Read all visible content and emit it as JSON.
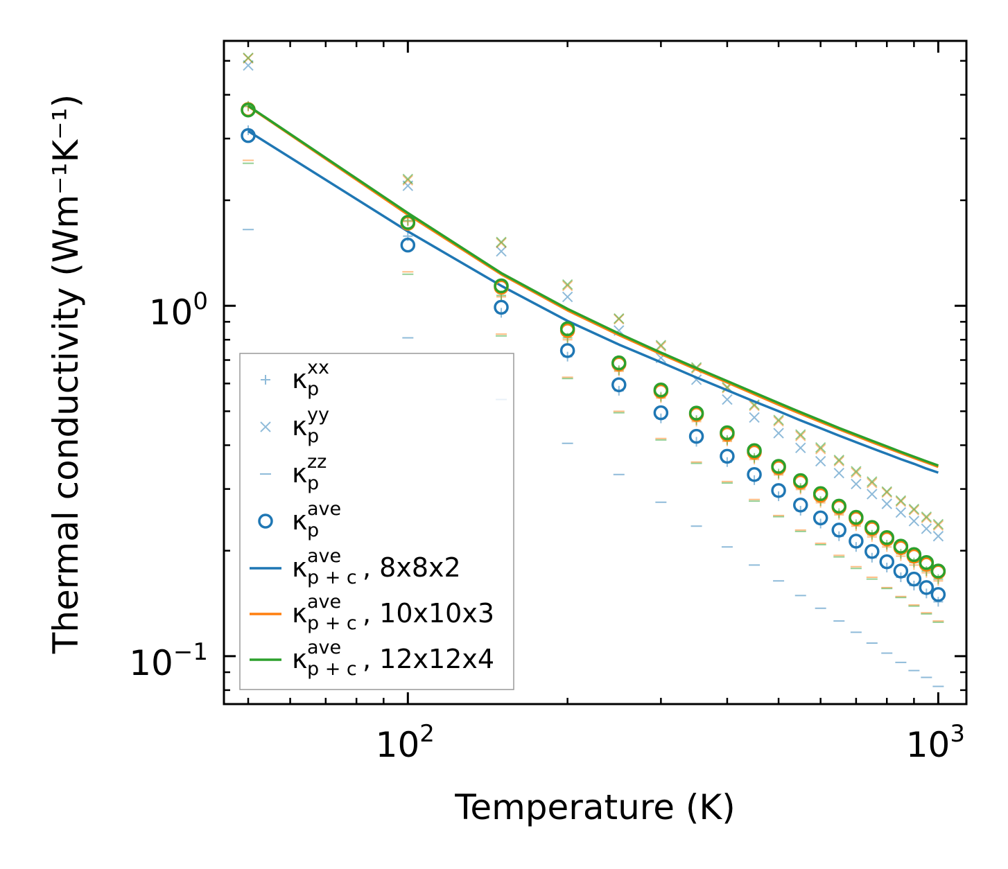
{
  "chart_data": {
    "type": "scatter",
    "xscale": "log",
    "yscale": "log",
    "xlim": [
      45,
      1130
    ],
    "ylim": [
      0.073,
      5.7
    ],
    "xlabel": "Temperature (K)",
    "ylabel": "Thermal conductivity (Wm⁻¹K⁻¹)",
    "xticks": [
      {
        "value": 100,
        "base": "10",
        "exp": "2"
      },
      {
        "value": 1000,
        "base": "10",
        "exp": "3"
      }
    ],
    "yticks": [
      {
        "value": 0.1,
        "base": "10",
        "exp": "−1"
      },
      {
        "value": 1,
        "base": "10",
        "exp": "0"
      }
    ],
    "x": [
      50,
      100,
      150,
      200,
      250,
      300,
      350,
      400,
      450,
      500,
      550,
      600,
      650,
      700,
      750,
      800,
      850,
      900,
      950,
      1000
    ],
    "colors": {
      "blue": "#1f77b4",
      "orange": "#ff7f0e",
      "green": "#2ca02c"
    },
    "marker_groups": [
      {
        "color": "#1f77b4",
        "kxx": [
          3.17,
          1.58,
          0.955,
          0.716,
          0.572,
          0.477,
          0.409,
          0.358,
          0.318,
          0.286,
          0.26,
          0.239,
          0.22,
          0.205,
          0.191,
          0.179,
          0.168,
          0.159,
          0.151,
          0.143
        ],
        "kyy": [
          4.85,
          2.2,
          1.43,
          1.06,
          0.85,
          0.71,
          0.615,
          0.54,
          0.48,
          0.433,
          0.393,
          0.36,
          0.333,
          0.31,
          0.29,
          0.272,
          0.257,
          0.243,
          0.231,
          0.22
        ],
        "kzz": [
          1.65,
          0.81,
          0.54,
          0.405,
          0.33,
          0.275,
          0.235,
          0.205,
          0.182,
          0.164,
          0.149,
          0.137,
          0.126,
          0.117,
          0.109,
          0.102,
          0.096,
          0.091,
          0.087,
          0.082
        ],
        "kave": [
          3.06,
          1.49,
          0.99,
          0.745,
          0.595,
          0.495,
          0.424,
          0.372,
          0.33,
          0.297,
          0.27,
          0.248,
          0.229,
          0.213,
          0.199,
          0.186,
          0.175,
          0.166,
          0.157,
          0.15
        ]
      },
      {
        "color": "#ff7f0e",
        "kxx": [
          3.7,
          1.74,
          1.06,
          0.8,
          0.65,
          0.545,
          0.467,
          0.41,
          0.364,
          0.329,
          0.299,
          0.274,
          0.253,
          0.235,
          0.219,
          0.205,
          0.193,
          0.182,
          0.173,
          0.164
        ],
        "kyy": [
          5.08,
          2.28,
          1.51,
          1.14,
          0.915,
          0.766,
          0.662,
          0.582,
          0.518,
          0.468,
          0.425,
          0.39,
          0.36,
          0.334,
          0.312,
          0.293,
          0.276,
          0.261,
          0.248,
          0.236
        ],
        "kzz": [
          2.6,
          1.25,
          0.83,
          0.625,
          0.5,
          0.418,
          0.358,
          0.315,
          0.28,
          0.252,
          0.229,
          0.21,
          0.194,
          0.18,
          0.168,
          0.157,
          0.148,
          0.14,
          0.133,
          0.126
        ],
        "kave": [
          3.63,
          1.72,
          1.13,
          0.85,
          0.682,
          0.57,
          0.49,
          0.43,
          0.382,
          0.345,
          0.314,
          0.288,
          0.266,
          0.247,
          0.231,
          0.216,
          0.204,
          0.193,
          0.183,
          0.174
        ]
      },
      {
        "color": "#2ca02c",
        "kxx": [
          3.72,
          1.75,
          1.07,
          0.81,
          0.655,
          0.55,
          0.472,
          0.414,
          0.368,
          0.332,
          0.302,
          0.277,
          0.256,
          0.238,
          0.222,
          0.208,
          0.196,
          0.185,
          0.175,
          0.166
        ],
        "kyy": [
          5.1,
          2.3,
          1.52,
          1.15,
          0.92,
          0.772,
          0.667,
          0.586,
          0.522,
          0.472,
          0.429,
          0.394,
          0.363,
          0.337,
          0.315,
          0.295,
          0.278,
          0.263,
          0.25,
          0.238
        ],
        "kzz": [
          2.55,
          1.23,
          0.82,
          0.62,
          0.495,
          0.414,
          0.355,
          0.312,
          0.277,
          0.25,
          0.227,
          0.208,
          0.192,
          0.178,
          0.166,
          0.156,
          0.147,
          0.139,
          0.132,
          0.125
        ],
        "kave": [
          3.62,
          1.73,
          1.14,
          0.86,
          0.687,
          0.575,
          0.494,
          0.434,
          0.386,
          0.348,
          0.317,
          0.291,
          0.268,
          0.249,
          0.233,
          0.218,
          0.206,
          0.195,
          0.185,
          0.175
        ]
      }
    ],
    "lines": [
      {
        "name": "8x8x2",
        "color": "#1f77b4",
        "values": [
          3.15,
          1.63,
          1.14,
          0.905,
          0.775,
          0.69,
          0.624,
          0.574,
          0.533,
          0.5,
          0.471,
          0.447,
          0.426,
          0.408,
          0.392,
          0.378,
          0.365,
          0.354,
          0.343,
          0.334
        ]
      },
      {
        "name": "10x10x3",
        "color": "#ff7f0e",
        "values": [
          3.71,
          1.82,
          1.23,
          0.97,
          0.825,
          0.728,
          0.658,
          0.604,
          0.559,
          0.522,
          0.492,
          0.466,
          0.444,
          0.425,
          0.408,
          0.393,
          0.38,
          0.368,
          0.357,
          0.347
        ]
      },
      {
        "name": "12x12x4",
        "color": "#2ca02c",
        "values": [
          3.72,
          1.84,
          1.24,
          0.98,
          0.833,
          0.735,
          0.664,
          0.61,
          0.565,
          0.528,
          0.497,
          0.471,
          0.448,
          0.429,
          0.412,
          0.397,
          0.383,
          0.371,
          0.36,
          0.35
        ]
      }
    ],
    "legend": {
      "placement": "lower-left",
      "entries": [
        {
          "id": "kxx",
          "marker": "plus",
          "color": "#1f77b4",
          "alpha": 0.5,
          "sym": "κ",
          "sub": "p",
          "sup": "xx",
          "suffix": ""
        },
        {
          "id": "kyy",
          "marker": "x",
          "color": "#1f77b4",
          "alpha": 0.5,
          "sym": "κ",
          "sub": "p",
          "sup": "yy",
          "suffix": ""
        },
        {
          "id": "kzz",
          "marker": "hline",
          "color": "#1f77b4",
          "alpha": 0.5,
          "sym": "κ",
          "sub": "p",
          "sup": "zz",
          "suffix": ""
        },
        {
          "id": "kave",
          "marker": "circle",
          "color": "#1f77b4",
          "alpha": 1,
          "sym": "κ",
          "sub": "p",
          "sup": "ave",
          "suffix": ""
        },
        {
          "id": "line-8x8x2",
          "marker": "line",
          "color": "#1f77b4",
          "alpha": 1,
          "sym": "κ",
          "sub": "p + c",
          "sup": "ave",
          "suffix": ", 8x8x2"
        },
        {
          "id": "line-10x10x3",
          "marker": "line",
          "color": "#ff7f0e",
          "alpha": 1,
          "sym": "κ",
          "sub": "p + c",
          "sup": "ave",
          "suffix": ", 10x10x3"
        },
        {
          "id": "line-12x12x4",
          "marker": "line",
          "color": "#2ca02c",
          "alpha": 1,
          "sym": "κ",
          "sub": "p + c",
          "sup": "ave",
          "suffix": ", 12x12x4"
        }
      ]
    }
  }
}
